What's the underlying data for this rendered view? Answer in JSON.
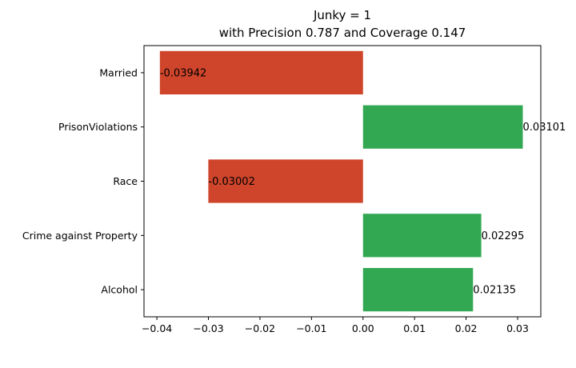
{
  "chart_data": {
    "type": "bar",
    "orientation": "horizontal",
    "title": "Junky = 1",
    "subtitle": "with Precision 0.787 and Coverage 0.147",
    "categories": [
      "Married",
      "PrisonViolations",
      "Race",
      "Crime against Property",
      "Alcohol"
    ],
    "values": [
      -0.03942,
      0.03101,
      -0.03002,
      0.02295,
      0.02135
    ],
    "value_labels": [
      "-0.03942",
      "0.03101",
      "-0.03002",
      "0.02295",
      "0.02135"
    ],
    "x_ticks": [
      -0.04,
      -0.03,
      -0.02,
      -0.01,
      0.0,
      0.01,
      0.02,
      0.03
    ],
    "x_tick_labels": [
      "−0.04",
      "−0.03",
      "−0.02",
      "−0.01",
      "0.00",
      "0.01",
      "0.02",
      "0.03"
    ],
    "xlim": [
      -0.0425,
      0.0345
    ],
    "xlabel": "",
    "ylabel": "",
    "grid": false,
    "colors": {
      "positive": "#33a853",
      "negative": "#cf452b",
      "axis": "#000000"
    }
  }
}
